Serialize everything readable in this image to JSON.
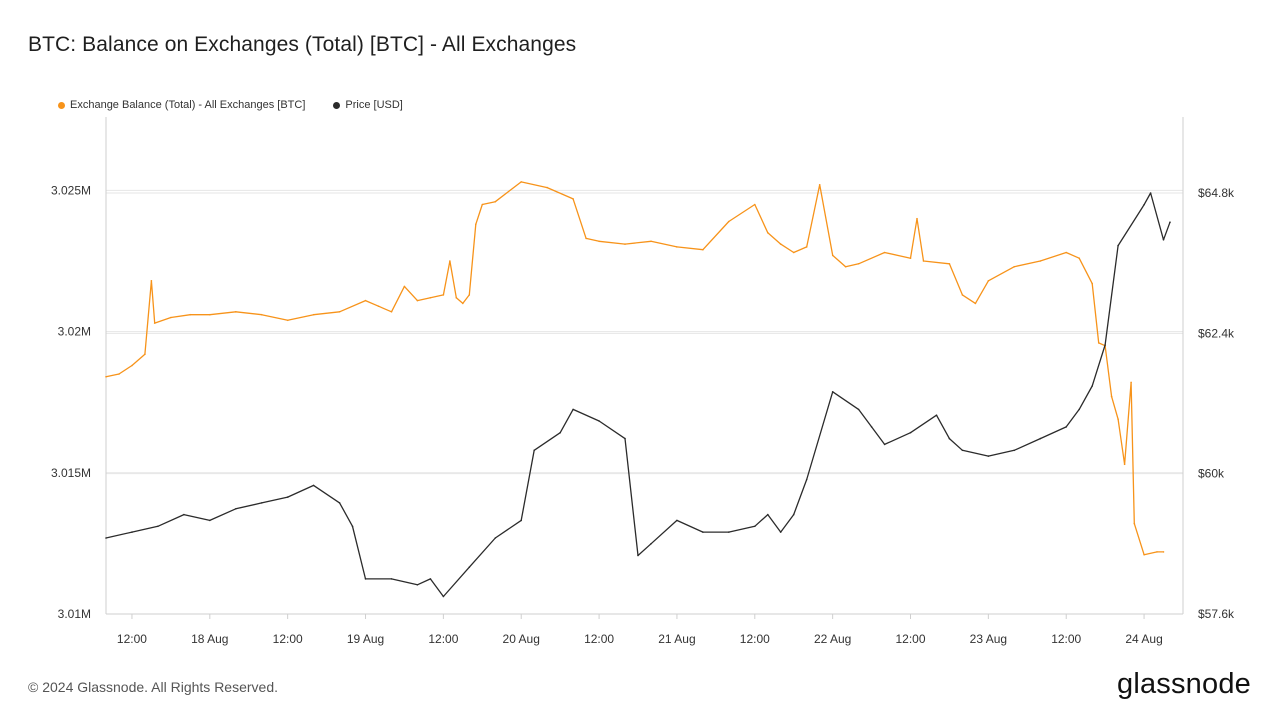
{
  "title": "BTC: Balance on Exchanges (Total) [BTC] - All Exchanges",
  "footer": "© 2024 Glassnode. All Rights Reserved.",
  "brand": "glassnode",
  "chart_data": {
    "type": "line",
    "title": "BTC: Balance on Exchanges (Total) [BTC] - All Exchanges",
    "grid": true,
    "legend_position": "top-left",
    "x_range": [
      "2024-08-17T08:00",
      "2024-08-24T06:00"
    ],
    "x_ticks": [
      "12:00",
      "18 Aug",
      "12:00",
      "19 Aug",
      "12:00",
      "20 Aug",
      "12:00",
      "21 Aug",
      "12:00",
      "22 Aug",
      "12:00",
      "23 Aug",
      "12:00",
      "24 Aug"
    ],
    "x_tick_times": [
      "2024-08-17T12:00",
      "2024-08-18T00:00",
      "2024-08-18T12:00",
      "2024-08-19T00:00",
      "2024-08-19T12:00",
      "2024-08-20T00:00",
      "2024-08-20T12:00",
      "2024-08-21T00:00",
      "2024-08-21T12:00",
      "2024-08-22T00:00",
      "2024-08-22T12:00",
      "2024-08-23T00:00",
      "2024-08-23T12:00",
      "2024-08-24T00:00"
    ],
    "y_left": {
      "ticks": [
        "3.025M",
        "3.02M",
        "3.015M",
        "3.01M"
      ],
      "tick_values": [
        3025000,
        3020000,
        3015000,
        3010000
      ],
      "range": [
        3010000,
        3027600
      ]
    },
    "y_right": {
      "ticks": [
        "$64.8k",
        "$62.4k",
        "$60k",
        "$57.6k"
      ],
      "tick_values": [
        64800,
        62400,
        60000,
        57600
      ],
      "range": [
        57600,
        66100
      ]
    },
    "series": [
      {
        "name": "Exchange Balance (Total) - All Exchanges [BTC]",
        "axis": "left",
        "color": "#f7931a",
        "points": [
          [
            "2024-08-17T08:00",
            3018400
          ],
          [
            "2024-08-17T10:00",
            3018500
          ],
          [
            "2024-08-17T12:00",
            3018800
          ],
          [
            "2024-08-17T14:00",
            3019200
          ],
          [
            "2024-08-17T15:00",
            3021800
          ],
          [
            "2024-08-17T15:30",
            3020300
          ],
          [
            "2024-08-17T18:00",
            3020500
          ],
          [
            "2024-08-17T21:00",
            3020600
          ],
          [
            "2024-08-18T00:00",
            3020600
          ],
          [
            "2024-08-18T04:00",
            3020700
          ],
          [
            "2024-08-18T08:00",
            3020600
          ],
          [
            "2024-08-18T12:00",
            3020400
          ],
          [
            "2024-08-18T16:00",
            3020600
          ],
          [
            "2024-08-18T20:00",
            3020700
          ],
          [
            "2024-08-19T00:00",
            3021100
          ],
          [
            "2024-08-19T02:00",
            3020900
          ],
          [
            "2024-08-19T04:00",
            3020700
          ],
          [
            "2024-08-19T06:00",
            3021600
          ],
          [
            "2024-08-19T08:00",
            3021100
          ],
          [
            "2024-08-19T10:00",
            3021200
          ],
          [
            "2024-08-19T12:00",
            3021300
          ],
          [
            "2024-08-19T13:00",
            3022500
          ],
          [
            "2024-08-19T14:00",
            3021200
          ],
          [
            "2024-08-19T15:00",
            3021000
          ],
          [
            "2024-08-19T16:00",
            3021300
          ],
          [
            "2024-08-19T17:00",
            3023800
          ],
          [
            "2024-08-19T18:00",
            3024500
          ],
          [
            "2024-08-19T20:00",
            3024600
          ],
          [
            "2024-08-20T00:00",
            3025300
          ],
          [
            "2024-08-20T04:00",
            3025100
          ],
          [
            "2024-08-20T08:00",
            3024700
          ],
          [
            "2024-08-20T10:00",
            3023300
          ],
          [
            "2024-08-20T12:00",
            3023200
          ],
          [
            "2024-08-20T16:00",
            3023100
          ],
          [
            "2024-08-20T20:00",
            3023200
          ],
          [
            "2024-08-21T00:00",
            3023000
          ],
          [
            "2024-08-21T04:00",
            3022900
          ],
          [
            "2024-08-21T08:00",
            3023900
          ],
          [
            "2024-08-21T12:00",
            3024500
          ],
          [
            "2024-08-21T14:00",
            3023500
          ],
          [
            "2024-08-21T16:00",
            3023100
          ],
          [
            "2024-08-21T18:00",
            3022800
          ],
          [
            "2024-08-21T20:00",
            3023000
          ],
          [
            "2024-08-21T22:00",
            3025200
          ],
          [
            "2024-08-22T00:00",
            3022700
          ],
          [
            "2024-08-22T02:00",
            3022300
          ],
          [
            "2024-08-22T04:00",
            3022400
          ],
          [
            "2024-08-22T08:00",
            3022800
          ],
          [
            "2024-08-22T12:00",
            3022600
          ],
          [
            "2024-08-22T13:00",
            3024000
          ],
          [
            "2024-08-22T14:00",
            3022500
          ],
          [
            "2024-08-22T18:00",
            3022400
          ],
          [
            "2024-08-22T20:00",
            3021300
          ],
          [
            "2024-08-22T22:00",
            3021000
          ],
          [
            "2024-08-23T00:00",
            3021800
          ],
          [
            "2024-08-23T04:00",
            3022300
          ],
          [
            "2024-08-23T08:00",
            3022500
          ],
          [
            "2024-08-23T12:00",
            3022800
          ],
          [
            "2024-08-23T14:00",
            3022600
          ],
          [
            "2024-08-23T16:00",
            3021700
          ],
          [
            "2024-08-23T17:00",
            3019600
          ],
          [
            "2024-08-23T18:00",
            3019500
          ],
          [
            "2024-08-23T19:00",
            3017700
          ],
          [
            "2024-08-23T20:00",
            3016900
          ],
          [
            "2024-08-23T21:00",
            3015300
          ],
          [
            "2024-08-23T22:00",
            3018200
          ],
          [
            "2024-08-23T22:30",
            3013200
          ],
          [
            "2024-08-24T00:00",
            3012100
          ],
          [
            "2024-08-24T02:00",
            3012200
          ],
          [
            "2024-08-24T03:00",
            3012200
          ]
        ]
      },
      {
        "name": "Price [USD]",
        "axis": "right",
        "color": "#2b2b2b",
        "points": [
          [
            "2024-08-17T08:00",
            58900
          ],
          [
            "2024-08-17T12:00",
            59000
          ],
          [
            "2024-08-17T16:00",
            59100
          ],
          [
            "2024-08-17T20:00",
            59300
          ],
          [
            "2024-08-18T00:00",
            59200
          ],
          [
            "2024-08-18T04:00",
            59400
          ],
          [
            "2024-08-18T08:00",
            59500
          ],
          [
            "2024-08-18T12:00",
            59600
          ],
          [
            "2024-08-18T16:00",
            59800
          ],
          [
            "2024-08-18T20:00",
            59500
          ],
          [
            "2024-08-18T22:00",
            59100
          ],
          [
            "2024-08-19T00:00",
            58200
          ],
          [
            "2024-08-19T04:00",
            58200
          ],
          [
            "2024-08-19T08:00",
            58100
          ],
          [
            "2024-08-19T10:00",
            58200
          ],
          [
            "2024-08-19T12:00",
            57900
          ],
          [
            "2024-08-19T16:00",
            58400
          ],
          [
            "2024-08-19T20:00",
            58900
          ],
          [
            "2024-08-20T00:00",
            59200
          ],
          [
            "2024-08-20T02:00",
            60400
          ],
          [
            "2024-08-20T06:00",
            60700
          ],
          [
            "2024-08-20T08:00",
            61100
          ],
          [
            "2024-08-20T12:00",
            60900
          ],
          [
            "2024-08-20T16:00",
            60600
          ],
          [
            "2024-08-20T18:00",
            58600
          ],
          [
            "2024-08-20T20:00",
            58800
          ],
          [
            "2024-08-21T00:00",
            59200
          ],
          [
            "2024-08-21T04:00",
            59000
          ],
          [
            "2024-08-21T08:00",
            59000
          ],
          [
            "2024-08-21T12:00",
            59100
          ],
          [
            "2024-08-21T14:00",
            59300
          ],
          [
            "2024-08-21T16:00",
            59000
          ],
          [
            "2024-08-21T18:00",
            59300
          ],
          [
            "2024-08-21T20:00",
            59900
          ],
          [
            "2024-08-22T00:00",
            61400
          ],
          [
            "2024-08-22T04:00",
            61100
          ],
          [
            "2024-08-22T06:00",
            60800
          ],
          [
            "2024-08-22T08:00",
            60500
          ],
          [
            "2024-08-22T12:00",
            60700
          ],
          [
            "2024-08-22T16:00",
            61000
          ],
          [
            "2024-08-22T18:00",
            60600
          ],
          [
            "2024-08-22T20:00",
            60400
          ],
          [
            "2024-08-23T00:00",
            60300
          ],
          [
            "2024-08-23T04:00",
            60400
          ],
          [
            "2024-08-23T08:00",
            60600
          ],
          [
            "2024-08-23T12:00",
            60800
          ],
          [
            "2024-08-23T14:00",
            61100
          ],
          [
            "2024-08-23T16:00",
            61500
          ],
          [
            "2024-08-23T18:00",
            62200
          ],
          [
            "2024-08-23T20:00",
            63900
          ],
          [
            "2024-08-24T00:00",
            64600
          ],
          [
            "2024-08-24T01:00",
            64800
          ],
          [
            "2024-08-24T03:00",
            64000
          ],
          [
            "2024-08-24T04:00",
            64300
          ]
        ]
      }
    ]
  }
}
